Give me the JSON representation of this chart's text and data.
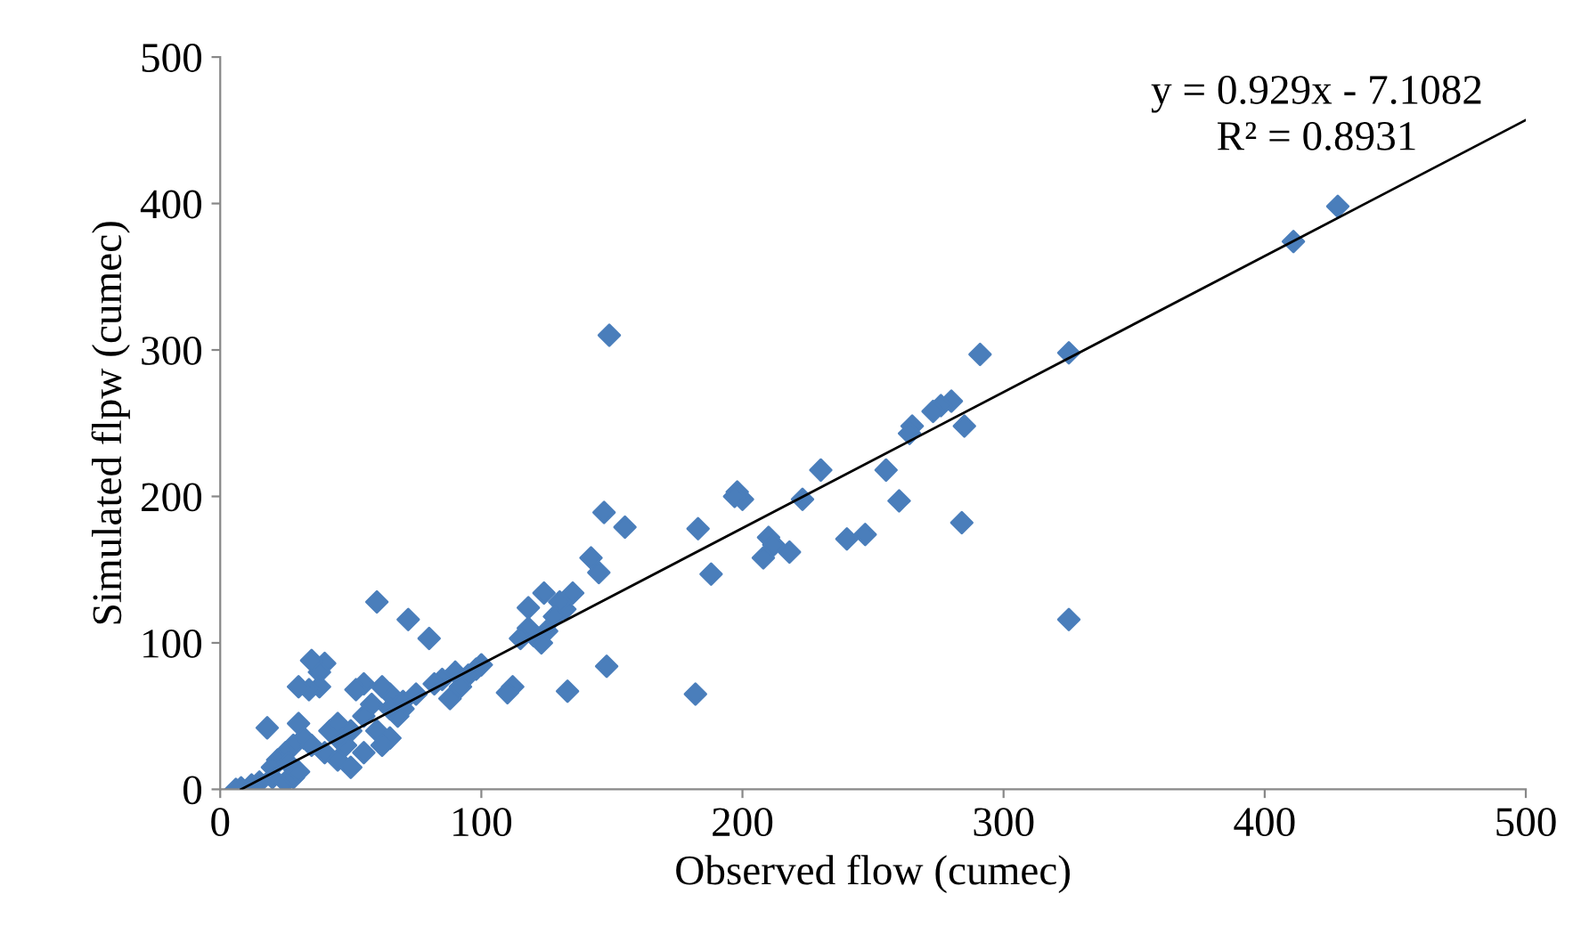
{
  "chart_data": {
    "type": "scatter",
    "xlabel": "Observed flow (cumec)",
    "ylabel": "Simulated flpw (cumec)",
    "annotations": [
      "y = 0.929x - 7.1082",
      "R² = 0.8931"
    ],
    "xlim": [
      0,
      500
    ],
    "ylim": [
      0,
      500
    ],
    "xticks": [
      0,
      100,
      200,
      300,
      400,
      500
    ],
    "yticks": [
      0,
      100,
      200,
      300,
      400,
      500
    ],
    "grid": false,
    "legend": false,
    "series": [
      {
        "color": "#4a7ebb",
        "marker": "diamond",
        "x": [
          428,
          411,
          325,
          325,
          291,
          285,
          284,
          280,
          276,
          273,
          265,
          264,
          260,
          255,
          247,
          240,
          230,
          223,
          218,
          210,
          212,
          208,
          200,
          198,
          197,
          188,
          183,
          182,
          155,
          147,
          149,
          148,
          145,
          142,
          135,
          132,
          130,
          128,
          133,
          125,
          123,
          120,
          118,
          115,
          112,
          110,
          124,
          118,
          100,
          98,
          95,
          90,
          88,
          85,
          80,
          72,
          70,
          68,
          65,
          60,
          62,
          58,
          55,
          52,
          55,
          50,
          48,
          45,
          42,
          40,
          38,
          38,
          35,
          34,
          30,
          30,
          32,
          28,
          25,
          22,
          20,
          18,
          20,
          15,
          12,
          8,
          6,
          25,
          28,
          30,
          26,
          35,
          40,
          45,
          50,
          55,
          60,
          65,
          45,
          62,
          70,
          75,
          82,
          92,
          65
        ],
        "values": [
          398,
          374,
          298,
          116,
          297,
          248,
          182,
          265,
          262,
          258,
          248,
          243,
          197,
          218,
          174,
          171,
          218,
          198,
          162,
          172,
          167,
          158,
          198,
          203,
          200,
          147,
          178,
          65,
          179,
          189,
          310,
          84,
          148,
          158,
          134,
          123,
          128,
          118,
          67,
          108,
          100,
          105,
          110,
          103,
          70,
          66,
          134,
          124,
          85,
          82,
          78,
          80,
          62,
          75,
          103,
          116,
          55,
          50,
          65,
          128,
          70,
          58,
          72,
          68,
          50,
          40,
          30,
          35,
          40,
          86,
          80,
          70,
          88,
          68,
          70,
          45,
          35,
          30,
          25,
          20,
          15,
          42,
          8,
          5,
          3,
          1,
          0,
          5,
          8,
          12,
          18,
          30,
          25,
          20,
          15,
          25,
          40,
          35,
          45,
          30,
          60,
          65,
          72,
          70,
          55
        ]
      },
      {
        "type": "line",
        "color": "#000000",
        "line_style": "solid",
        "marker": "none",
        "x": [
          8,
          500
        ],
        "values": [
          0,
          457
        ]
      }
    ]
  }
}
